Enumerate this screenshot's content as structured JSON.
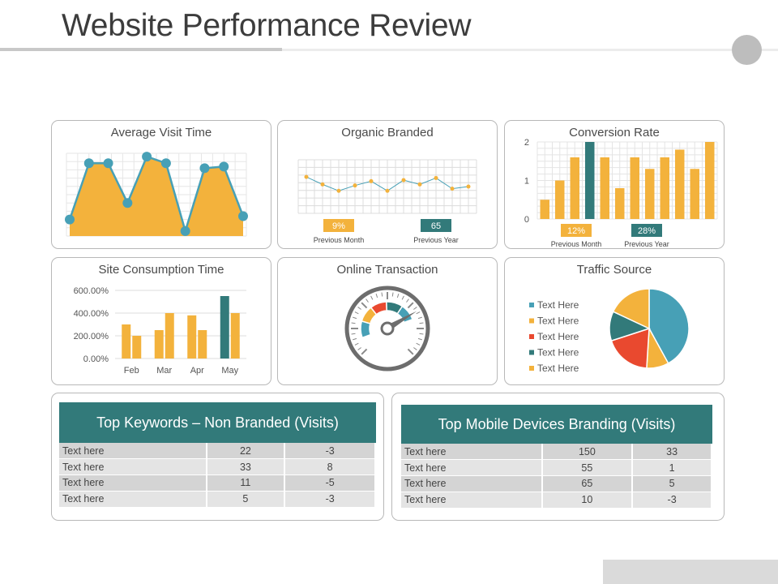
{
  "page": {
    "title": "Website Performance Review"
  },
  "colors": {
    "accent": "#f3b23c",
    "teal": "#327a7a",
    "blue": "#47a0b6",
    "red": "#e9492f"
  },
  "avg_visit": {
    "title": "Average Visit Time",
    "chart_data": {
      "type": "area",
      "values": [
        1.0,
        4.4,
        4.4,
        2.0,
        4.8,
        4.4,
        0.3,
        4.1,
        4.2,
        1.2
      ],
      "ylim": [
        0,
        5
      ]
    }
  },
  "organic": {
    "title": "Organic Branded",
    "chart_data": {
      "type": "line",
      "values": [
        3.4,
        2.7,
        2.1,
        2.6,
        3.0,
        2.1,
        3.1,
        2.7,
        3.3,
        2.3,
        2.5
      ],
      "ylim": [
        0,
        5
      ]
    },
    "badges": [
      {
        "value": "9%",
        "label": "Previous Month",
        "color": "#f3b23c"
      },
      {
        "value": "65",
        "label": "Previous Year",
        "color": "#327a7a"
      }
    ]
  },
  "conversion": {
    "title": "Conversion Rate",
    "chart_data": {
      "type": "bar",
      "values": [
        0.5,
        1.0,
        1.6,
        2.0,
        1.6,
        0.8,
        1.6,
        1.3,
        1.6,
        1.8,
        1.3,
        2.0
      ],
      "highlight_index": 3,
      "yticks": [
        "0",
        "1",
        "2"
      ],
      "ylim": [
        0,
        2
      ]
    },
    "badges": [
      {
        "value": "12%",
        "label": "Previous Month",
        "color": "#f3b23c"
      },
      {
        "value": "28%",
        "label": "Previous Year",
        "color": "#327a7a"
      }
    ]
  },
  "consumption": {
    "title": "Site Consumption Time",
    "chart_data": {
      "type": "bar",
      "categories": [
        "Feb",
        "Mar",
        "Apr",
        "May"
      ],
      "series": [
        {
          "values": [
            300,
            250,
            380,
            550
          ]
        },
        {
          "values": [
            200,
            400,
            250,
            400
          ]
        }
      ],
      "highlight": {
        "series": 0,
        "index": 3
      },
      "yticks": [
        "0.00%",
        "200.00%",
        "400.00%",
        "600.00%"
      ],
      "ylim": [
        0,
        600
      ]
    }
  },
  "transaction": {
    "title": "Online Transaction",
    "gauge": {
      "value": 0.72,
      "segment_colors": [
        "#47a0b6",
        "#f3b23c",
        "#e9492f",
        "#327a7a",
        "#47a0b6"
      ]
    }
  },
  "traffic": {
    "title": "Traffic Source",
    "chart_data": {
      "type": "pie",
      "legend": [
        {
          "label": "Text Here",
          "color": "#47a0b6"
        },
        {
          "label": "Text Here",
          "color": "#f3b23c"
        },
        {
          "label": "Text Here",
          "color": "#e9492f"
        },
        {
          "label": "Text Here",
          "color": "#327a7a"
        },
        {
          "label": "Text Here",
          "color": "#f3b23c"
        }
      ],
      "slices": [
        {
          "value": 42,
          "color": "#47a0b6"
        },
        {
          "value": 9,
          "color": "#f3b23c"
        },
        {
          "value": 19,
          "color": "#e9492f"
        },
        {
          "value": 12,
          "color": "#327a7a"
        },
        {
          "value": 18,
          "color": "#f3b23c"
        }
      ]
    }
  },
  "keywords": {
    "title": "Top Keywords – Non Branded (Visits)",
    "rows": [
      [
        "Text here",
        "22",
        "-3"
      ],
      [
        "Text here",
        "33",
        "8"
      ],
      [
        "Text here",
        "11",
        "-5"
      ],
      [
        "Text here",
        "5",
        "-3"
      ]
    ]
  },
  "mobile": {
    "title": "Top Mobile Devices Branding (Visits)",
    "rows": [
      [
        "Text here",
        "150",
        "33"
      ],
      [
        "Text here",
        "55",
        "1"
      ],
      [
        "Text here",
        "65",
        "5"
      ],
      [
        "Text here",
        "10",
        "-3"
      ]
    ]
  }
}
